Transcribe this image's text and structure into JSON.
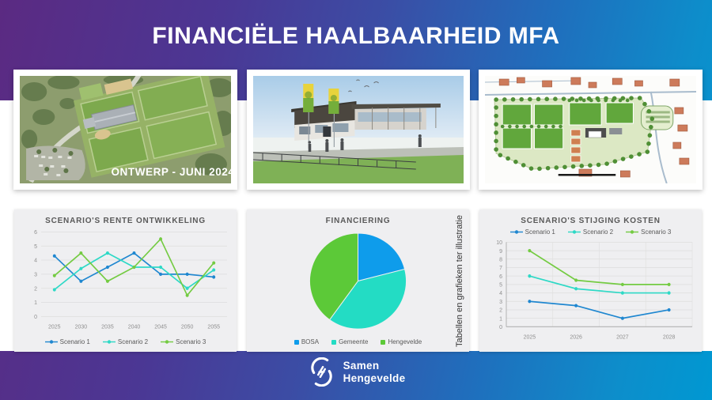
{
  "slide": {
    "title": "FINANCIËLE HAALBAARHEID MFA",
    "disclaimer": "Tabellen en grafieken ter illustratie",
    "footer_logo": {
      "line1": "Samen",
      "line2": "Hengevelde"
    },
    "colors": {
      "gradient_start": "#5b2a82",
      "gradient_mid": "#3b4da5",
      "gradient_end": "#0098d2",
      "panel_bg": "#efeff1",
      "title_text": "#ffffff"
    }
  },
  "images": [
    {
      "name": "aerial-design-render",
      "caption": "ONTWERP - JUNI 2024"
    },
    {
      "name": "clubhouse-render",
      "caption": ""
    },
    {
      "name": "site-plan-drawing",
      "caption": ""
    }
  ],
  "chart_data": [
    {
      "type": "line",
      "title": "SCENARIO'S RENTE ONTWIKKELING",
      "categories": [
        "2025",
        "2030",
        "2035",
        "2040",
        "2045",
        "2050",
        "2055"
      ],
      "series": [
        {
          "name": "Scenario 1",
          "color": "#1f87d0",
          "values": [
            4.3,
            2.5,
            3.5,
            4.5,
            3.0,
            3.0,
            2.8
          ]
        },
        {
          "name": "Scenario 2",
          "color": "#2ed9c6",
          "values": [
            1.9,
            3.4,
            4.5,
            3.5,
            3.5,
            2.0,
            3.3
          ]
        },
        {
          "name": "Scenario 3",
          "color": "#74cb42",
          "values": [
            2.9,
            4.5,
            2.5,
            3.5,
            5.5,
            1.5,
            3.8
          ]
        }
      ],
      "ylim": [
        0,
        6
      ],
      "ytick_step": 1,
      "legend_position": "bottom",
      "grid": "horizontal"
    },
    {
      "type": "pie",
      "title": "FINANCIERING",
      "labels": [
        "BOSA",
        "Gemeente",
        "Hengevelde"
      ],
      "values": [
        21,
        39,
        40
      ],
      "colors": [
        "#0e9ceb",
        "#23dcc4",
        "#5cc938"
      ],
      "legend_position": "bottom"
    },
    {
      "type": "line",
      "title": "SCENARIO'S STIJGING KOSTEN",
      "categories": [
        "2025",
        "2026",
        "2027",
        "2028"
      ],
      "series": [
        {
          "name": "Scenario 1",
          "color": "#1f87d0",
          "values": [
            3.0,
            2.5,
            1.0,
            2.0
          ]
        },
        {
          "name": "Scenario 2",
          "color": "#2ed9c6",
          "values": [
            6.0,
            4.5,
            4.0,
            4.0
          ]
        },
        {
          "name": "Scenario 3",
          "color": "#74cb42",
          "values": [
            9.0,
            5.5,
            5.0,
            5.0
          ]
        }
      ],
      "ylim": [
        0,
        10
      ],
      "ytick_step": 1,
      "legend_position": "top",
      "grid": "both"
    }
  ]
}
